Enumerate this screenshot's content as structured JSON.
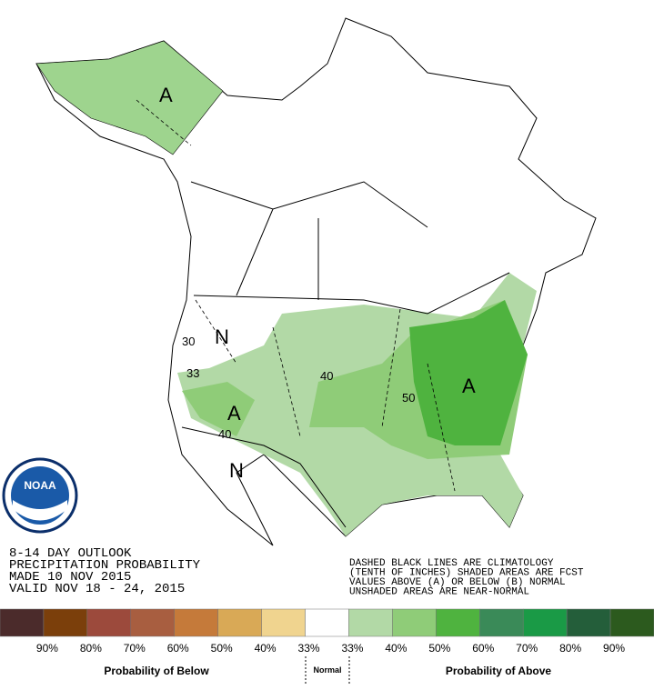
{
  "header": {
    "lines": [
      "8-14 DAY OUTLOOK",
      "PRECIPITATION PROBABILITY",
      "MADE  10 NOV 2015",
      "VALID  NOV 18 - 24, 2015"
    ]
  },
  "note": {
    "lines": [
      "DASHED BLACK LINES ARE CLIMATOLOGY",
      "(TENTH OF INCHES) SHADED AREAS ARE FCST",
      "VALUES ABOVE (A) OR BELOW (B) NORMAL",
      "UNSHADED AREAS ARE NEAR-NORMAL"
    ]
  },
  "logo": "NOAA",
  "map_labels": [
    "A",
    "A",
    "A",
    "N",
    "N",
    "33",
    "30",
    "40",
    "40",
    "50"
  ],
  "legend": {
    "colors": [
      "#4b2b2b",
      "#7b3f0b",
      "#9c4a3c",
      "#a85e40",
      "#c57a3a",
      "#d9a956",
      "#f0d48f",
      "#ffffff",
      "#b2d9a6",
      "#8fcc78",
      "#4fb33f",
      "#3a8a58",
      "#1a9a46",
      "#245e3a",
      "#2c5a1e"
    ],
    "labels": [
      "90%",
      "80%",
      "70%",
      "60%",
      "50%",
      "40%",
      "33%",
      "33%",
      "40%",
      "50%",
      "60%",
      "70%",
      "80%",
      "90%"
    ],
    "below": "Probability of Below",
    "normal": "Normal",
    "above": "Probability of Above"
  }
}
